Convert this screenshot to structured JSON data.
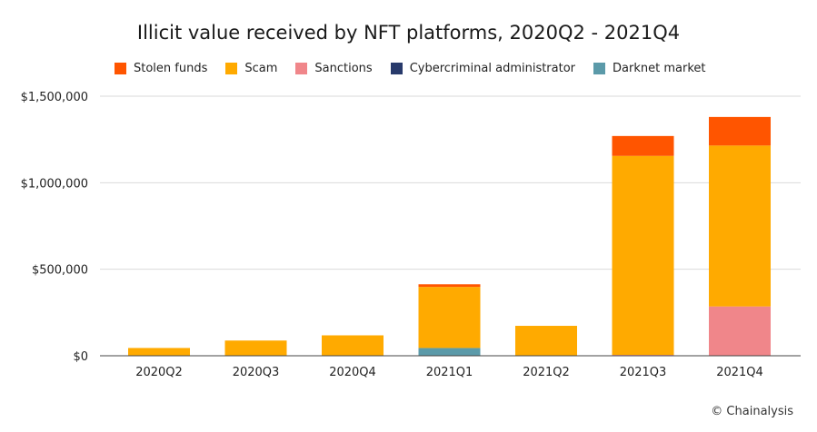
{
  "title": "Illicit value received by NFT platforms, 2020Q2 - 2021Q4",
  "credit": "© Chainalysis",
  "chart_data": {
    "type": "bar",
    "stacked": true,
    "title": "Illicit value received by NFT platforms, 2020Q2 - 2021Q4",
    "xlabel": "",
    "ylabel": "",
    "categories": [
      "2020Q2",
      "2020Q3",
      "2020Q4",
      "2021Q1",
      "2021Q2",
      "2021Q3",
      "2021Q4"
    ],
    "ylim": [
      0,
      1500000
    ],
    "yticks": [
      0,
      500000,
      1000000,
      1500000
    ],
    "ytick_labels": [
      "$0",
      "$500,000",
      "$1,000,000",
      "$1,500,000"
    ],
    "grid": true,
    "legend_position": "top",
    "series": [
      {
        "name": "Darknet market",
        "color": "#5b9aa9",
        "values": [
          0,
          0,
          0,
          45000,
          0,
          0,
          0
        ]
      },
      {
        "name": "Cybercriminal administrator",
        "color": "#283a6b",
        "values": [
          0,
          0,
          0,
          0,
          0,
          0,
          0
        ]
      },
      {
        "name": "Sanctions",
        "color": "#f0868a",
        "values": [
          0,
          0,
          0,
          0,
          0,
          5000,
          285000
        ]
      },
      {
        "name": "Scam",
        "color": "#ffaa00",
        "values": [
          45000,
          88000,
          118000,
          353000,
          173000,
          1150000,
          930000
        ]
      },
      {
        "name": "Stolen funds",
        "color": "#ff5500",
        "values": [
          0,
          0,
          0,
          15000,
          0,
          115000,
          165000
        ]
      }
    ],
    "legend_order": [
      "Stolen funds",
      "Scam",
      "Sanctions",
      "Cybercriminal administrator",
      "Darknet market"
    ]
  }
}
